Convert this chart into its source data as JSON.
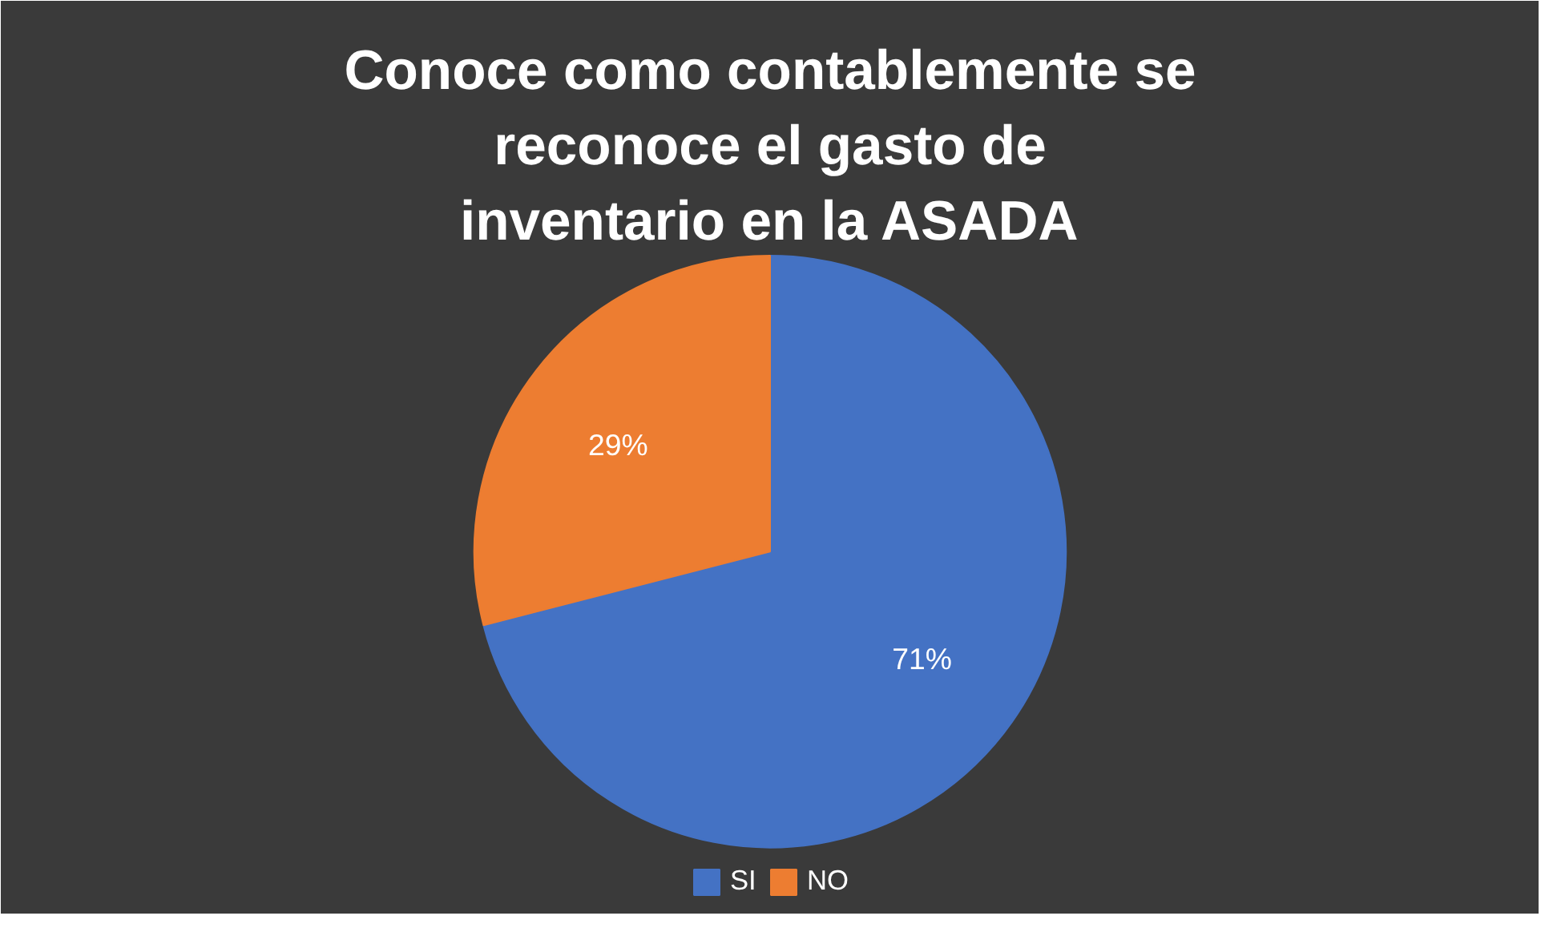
{
  "chart_data": {
    "type": "pie",
    "title": "Conoce como contablemente se reconoce el gasto de inventario en la ASADA",
    "categories": [
      "SI",
      "NO"
    ],
    "values": [
      71,
      29
    ],
    "colors": [
      "#4472c4",
      "#ed7d31"
    ],
    "value_labels": [
      "71%",
      "29%"
    ],
    "legend": "bottom"
  }
}
